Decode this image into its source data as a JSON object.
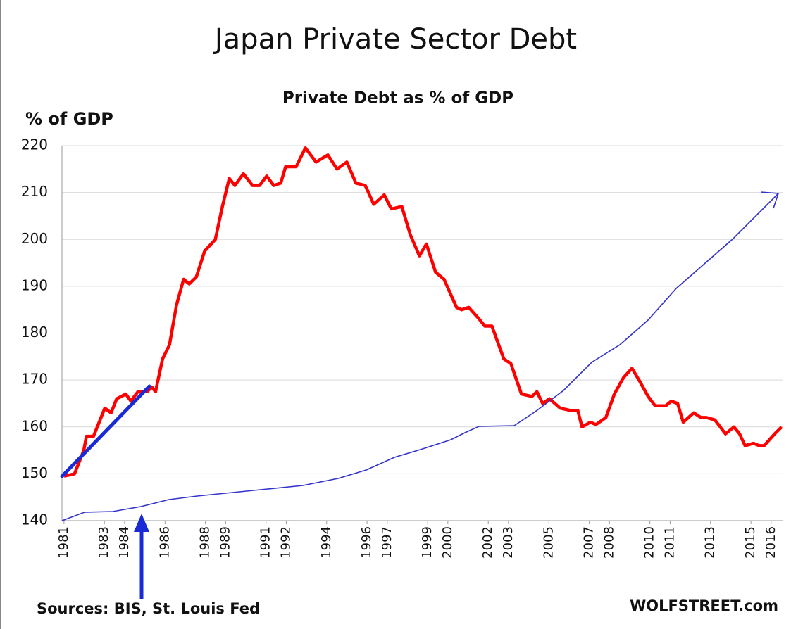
{
  "chart_data": {
    "type": "line",
    "title": "Japan Private Sector Debt",
    "subtitle": "Private Debt as % of GDP",
    "y_label": "% of GDP",
    "source": "Sources: BIS, St. Louis Fed",
    "credit": "WOLFSTREET.com",
    "x": [
      1981.0,
      1981.52,
      1981.98,
      1982.11,
      1982.46,
      1982.74,
      1983.02,
      1983.33,
      1983.61,
      1984.06,
      1984.31,
      1984.66,
      1985.11,
      1985.35,
      1985.53,
      1985.88,
      1986.22,
      1986.57,
      1986.92,
      1987.2,
      1987.55,
      1987.96,
      1988.49,
      1988.84,
      1989.18,
      1989.46,
      1989.88,
      1990.33,
      1990.68,
      1991.03,
      1991.38,
      1991.73,
      1991.97,
      1992.49,
      1992.95,
      1993.47,
      1994.06,
      1994.51,
      1995.0,
      1995.45,
      1995.91,
      1996.33,
      1996.85,
      1997.2,
      1997.72,
      1998.14,
      1998.59,
      1998.94,
      1999.39,
      1999.81,
      2000.43,
      2000.68,
      2001.03,
      2001.55,
      2001.83,
      2002.18,
      2002.77,
      2003.12,
      2003.64,
      2004.16,
      2004.41,
      2004.69,
      2005.03,
      2005.56,
      2006.08,
      2006.43,
      2006.64,
      2007.05,
      2007.33,
      2007.82,
      2008.24,
      2008.69,
      2009.11,
      2009.46,
      2009.91,
      2010.26,
      2010.78,
      2011.06,
      2011.37,
      2011.65,
      2012.17,
      2012.52,
      2012.8,
      2013.22,
      2013.74,
      2014.16,
      2014.44,
      2014.71,
      2015.13,
      2015.41,
      2015.65,
      2016.17,
      2016.52
    ],
    "series": [
      {
        "name": "Private Debt",
        "color": "#ff0000",
        "values": [
          149.5,
          150,
          155,
          158,
          158,
          161,
          164,
          163,
          166,
          167,
          165.5,
          167.5,
          167.5,
          168.5,
          167.5,
          174.5,
          177.5,
          186,
          191.5,
          190.5,
          192,
          197.5,
          200,
          207,
          213,
          211.5,
          214,
          211.5,
          211.5,
          213.5,
          211.5,
          212,
          215.5,
          215.5,
          219.5,
          216.5,
          218,
          215,
          216.5,
          212,
          211.5,
          207.5,
          209.5,
          206.5,
          207,
          201,
          196.5,
          199,
          193,
          191.5,
          185.5,
          185,
          185.5,
          183,
          181.5,
          181.5,
          174.5,
          173.5,
          167,
          166.5,
          167.5,
          165,
          166,
          164,
          163.5,
          163.5,
          160,
          161,
          160.5,
          162,
          167,
          170.5,
          172.5,
          170,
          166.5,
          164.5,
          164.5,
          165.5,
          165,
          161,
          163,
          162,
          162,
          161.5,
          158.5,
          160,
          158.5,
          156,
          156.5,
          156,
          156,
          158.5,
          160
        ]
      }
    ],
    "xlim": [
      1980.9,
      2016.6
    ],
    "xticks": [
      1981,
      1983,
      1984,
      1986,
      1988,
      1989,
      1991,
      1992,
      1994,
      1996,
      1997,
      1999,
      2000,
      2002,
      2003,
      2005,
      2007,
      2008,
      2010,
      2011,
      2013,
      2015,
      2016
    ],
    "ylim": [
      140,
      220
    ],
    "yticks": [
      140,
      150,
      160,
      170,
      180,
      190,
      200,
      210,
      220
    ],
    "grid": true
  }
}
